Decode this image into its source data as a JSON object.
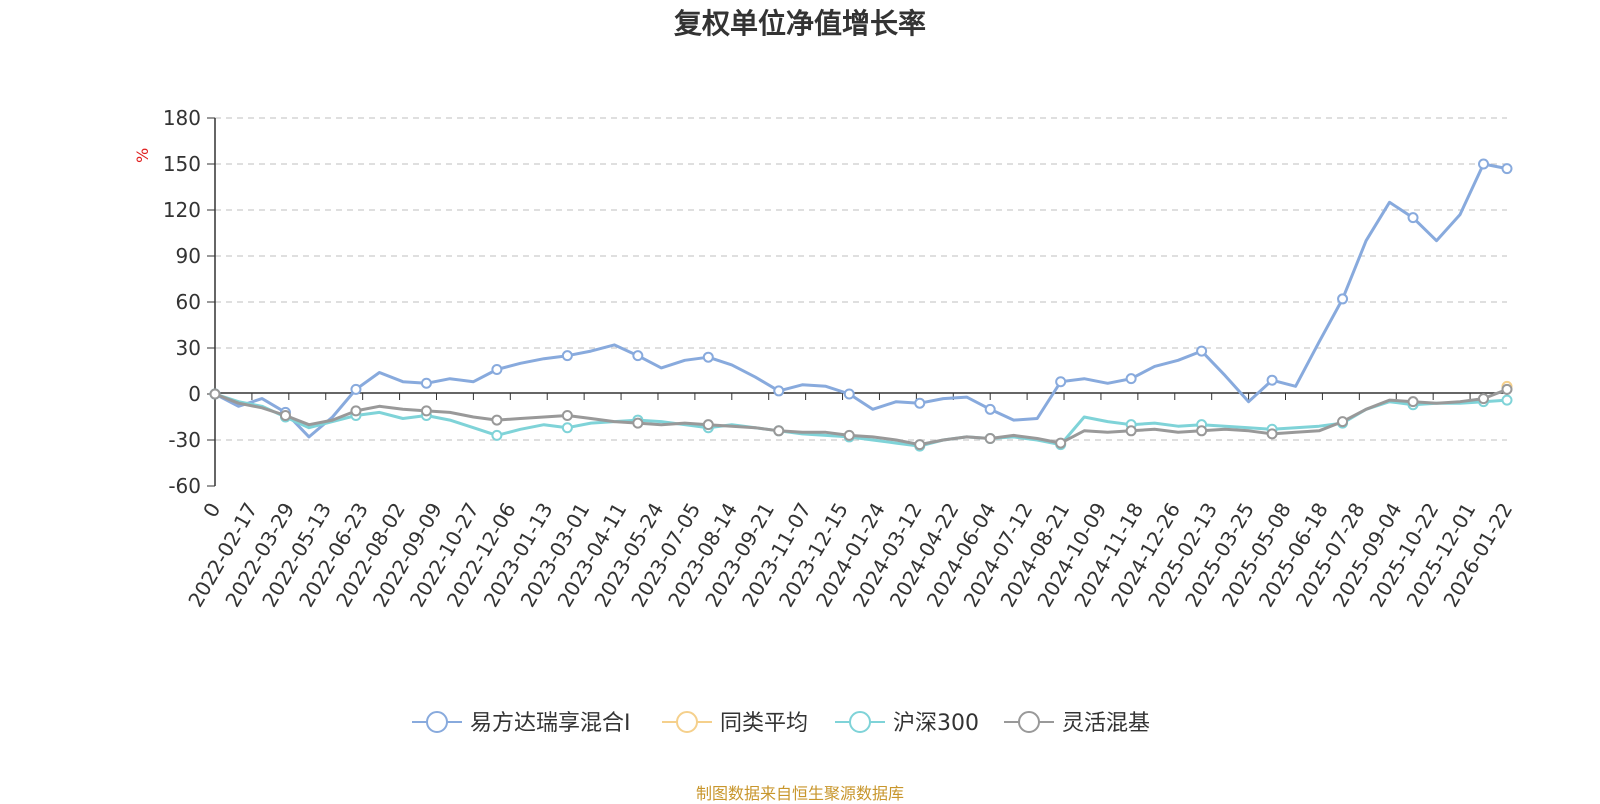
{
  "chart_data": {
    "type": "line",
    "title": "复权单位净值增长率",
    "ylabel": "%",
    "ylim": [
      -60,
      180
    ],
    "yticks": [
      -60,
      -30,
      0,
      30,
      60,
      90,
      120,
      150,
      180
    ],
    "grid": true,
    "legend_position": "bottom",
    "source": "制图数据来自恒生聚源数据库",
    "x_tick_labels": [
      "0",
      "2022-02-17",
      "2022-03-29",
      "2022-05-13",
      "2022-06-23",
      "2022-08-02",
      "2022-09-09",
      "2022-10-27",
      "2022-12-06",
      "2023-01-13",
      "2023-03-01",
      "2023-04-11",
      "2023-05-24",
      "2023-07-05",
      "2023-08-14",
      "2023-09-21",
      "2023-11-07",
      "2023-12-15",
      "2024-01-24",
      "2024-03-12",
      "2024-04-22",
      "2024-06-04",
      "2024-07-12",
      "2024-08-21",
      "2024-10-09",
      "2024-11-18",
      "2024-12-26",
      "2025-02-13",
      "2025-03-25",
      "2025-05-08",
      "2025-06-18",
      "2025-07-28",
      "2025-09-04",
      "2025-10-22",
      "2025-12-01",
      "2026-01-22"
    ],
    "series": [
      {
        "name": "易方达瑞享混合I",
        "color": "#88aadd",
        "values": [
          0,
          -8,
          -3,
          -12,
          -28,
          -15,
          3,
          14,
          8,
          7,
          10,
          8,
          16,
          20,
          23,
          25,
          28,
          32,
          25,
          17,
          22,
          24,
          19,
          11,
          2,
          6,
          5,
          0,
          -10,
          -5,
          -6,
          -3,
          -2,
          -10,
          -17,
          -16,
          8,
          10,
          7,
          10,
          18,
          22,
          28,
          12,
          -5,
          9,
          5,
          34,
          62,
          100,
          125,
          115,
          100,
          117,
          150,
          147
        ]
      },
      {
        "name": "同类平均",
        "color": "#f5d08c",
        "values": [
          null,
          null,
          null,
          null,
          null,
          null,
          null,
          null,
          null,
          null,
          null,
          null,
          null,
          null,
          null,
          null,
          null,
          null,
          null,
          null,
          null,
          null,
          null,
          null,
          null,
          null,
          null,
          null,
          null,
          null,
          null,
          null,
          null,
          null,
          null,
          null,
          null,
          null,
          null,
          null,
          null,
          null,
          null,
          null,
          null,
          null,
          null,
          null,
          null,
          null,
          null,
          null,
          null,
          null,
          null,
          5
        ]
      },
      {
        "name": "沪深300",
        "color": "#7fd3d8",
        "values": [
          0,
          -5,
          -8,
          -15,
          -22,
          -18,
          -14,
          -12,
          -16,
          -14,
          -17,
          -22,
          -27,
          -23,
          -20,
          -22,
          -19,
          -18,
          -17,
          -18,
          -20,
          -22,
          -20,
          -22,
          -24,
          -26,
          -27,
          -28,
          -30,
          -32,
          -34,
          -30,
          -28,
          -29,
          -28,
          -30,
          -33,
          -15,
          -18,
          -20,
          -19,
          -21,
          -20,
          -21,
          -22,
          -23,
          -22,
          -21,
          -19,
          -10,
          -5,
          -7,
          -6,
          -6,
          -5,
          -4
        ]
      },
      {
        "name": "灵活混基",
        "color": "#999999",
        "values": [
          0,
          -6,
          -9,
          -14,
          -20,
          -17,
          -11,
          -8,
          -10,
          -11,
          -12,
          -15,
          -17,
          -16,
          -15,
          -14,
          -16,
          -18,
          -19,
          -20,
          -19,
          -20,
          -21,
          -22,
          -24,
          -25,
          -25,
          -27,
          -28,
          -30,
          -33,
          -30,
          -28,
          -29,
          -27,
          -29,
          -32,
          -24,
          -25,
          -24,
          -23,
          -25,
          -24,
          -23,
          -24,
          -26,
          -25,
          -24,
          -18,
          -10,
          -4,
          -5,
          -6,
          -5,
          -3,
          3
        ]
      }
    ]
  }
}
